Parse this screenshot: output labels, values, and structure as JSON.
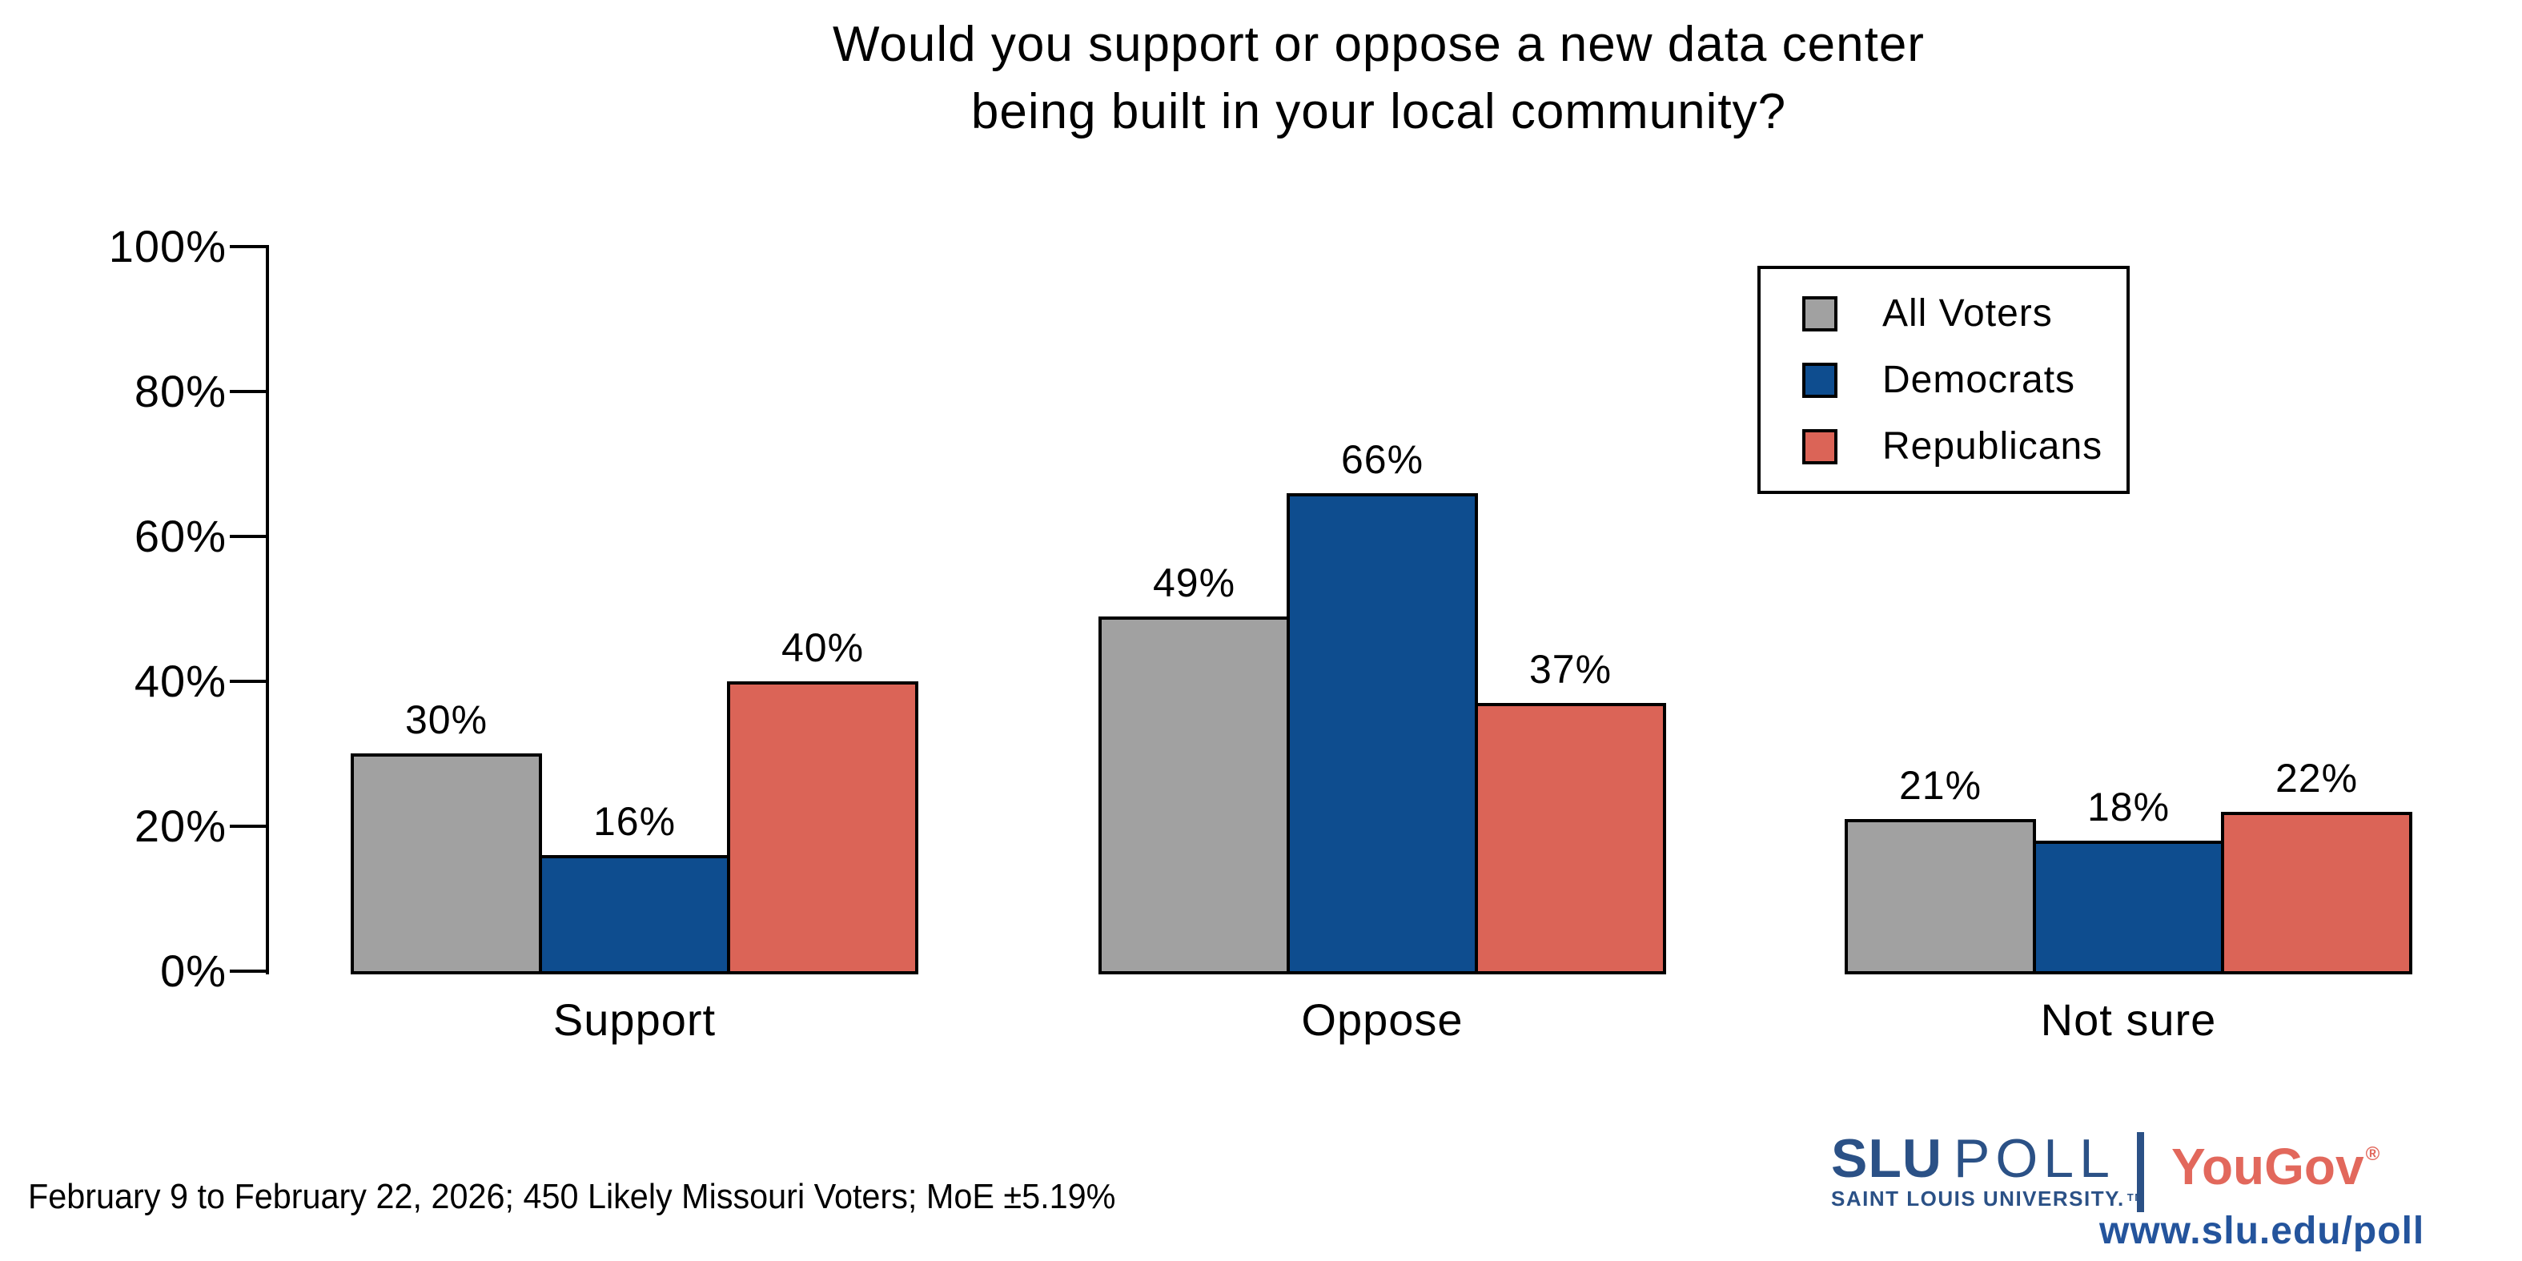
{
  "title": {
    "line1": "Would you support or oppose a new data center",
    "line2": "being built in your local community?"
  },
  "chart_data": {
    "type": "bar",
    "title": "Would you support or oppose a new data center being built in your local community?",
    "categories": [
      "Support",
      "Oppose",
      "Not sure"
    ],
    "series": [
      {
        "name": "All Voters",
        "color": "#a1a1a1",
        "values": [
          30,
          49,
          21
        ]
      },
      {
        "name": "Democrats",
        "color": "#0e4d8f",
        "values": [
          16,
          66,
          18
        ]
      },
      {
        "name": "Republicans",
        "color": "#db6457",
        "values": [
          40,
          37,
          22
        ]
      }
    ],
    "value_suffix": "%",
    "ylim": [
      0,
      100
    ],
    "yticks": [
      0,
      20,
      40,
      60,
      80,
      100
    ],
    "ytick_suffix": "%",
    "grid": false,
    "legend_position": "upper-right",
    "bar_edge_color": "#000000"
  },
  "footer": {
    "note": "February 9 to February 22, 2026; 450 Likely Missouri Voters; MoE ±5.19%"
  },
  "branding": {
    "slu": "SLU",
    "poll": "POLL",
    "university": "SAINT LOUIS UNIVERSITY.",
    "trademark": "TM",
    "yougov": "YouGov",
    "registered": "®",
    "url": "www.slu.edu/poll",
    "slu_blue": "#2b5186",
    "yougov_red": "#e2685c",
    "url_blue": "#24549c"
  }
}
